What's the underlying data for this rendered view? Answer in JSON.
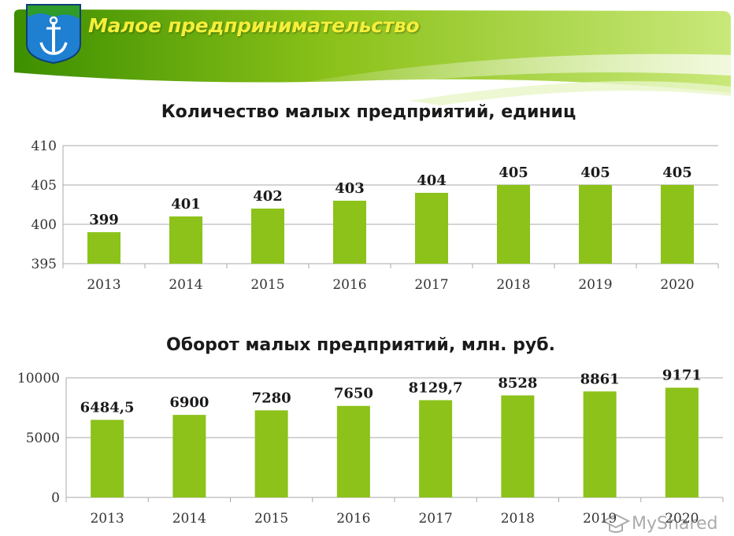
{
  "header": {
    "title": "Малое предпринимательство",
    "emblem_icon": "anchor-coat-of-arms-icon",
    "accent_color": "#8cc21a"
  },
  "chart_data": [
    {
      "type": "bar",
      "title": "Количество малых предприятий, единиц",
      "categories": [
        "2013",
        "2014",
        "2015",
        "2016",
        "2017",
        "2018",
        "2019",
        "2020"
      ],
      "values": [
        399,
        401,
        402,
        403,
        404,
        405,
        405,
        405
      ],
      "value_labels": [
        "399",
        "401",
        "402",
        "403",
        "404",
        "405",
        "405",
        "405"
      ],
      "ylim": [
        395,
        410
      ],
      "yticks": [
        395,
        400,
        405,
        410
      ],
      "ytick_labels": [
        "395",
        "400",
        "405",
        "410"
      ],
      "grid": true,
      "bar_color": "#8cc21a"
    },
    {
      "type": "bar",
      "title": "Оборот малых предприятий, млн. руб.",
      "categories": [
        "2013",
        "2014",
        "2015",
        "2016",
        "2017",
        "2018",
        "2019",
        "2020"
      ],
      "values": [
        6484.5,
        6900,
        7280,
        7650,
        8129.7,
        8528,
        8861,
        9171
      ],
      "value_labels": [
        "6484,5",
        "6900",
        "7280",
        "7650",
        "8129,7",
        "8528",
        "8861",
        "9171"
      ],
      "ylim": [
        0,
        10000
      ],
      "yticks": [
        0,
        5000,
        10000
      ],
      "ytick_labels": [
        "0",
        "5000",
        "10000"
      ],
      "grid": true,
      "bar_color": "#8cc21a"
    }
  ],
  "watermark": {
    "text": "MyShared",
    "icon": "hat-logo-icon"
  }
}
